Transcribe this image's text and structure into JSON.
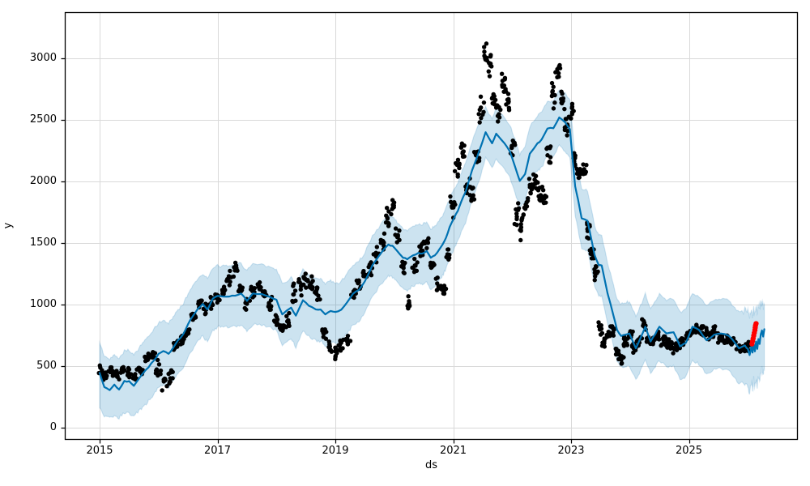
{
  "chart_data": {
    "type": "line",
    "subtype": "time-series-forecast (actuals scatter + forecast line + uncertainty band + anomaly points)",
    "title": "",
    "xlabel": "ds",
    "ylabel": "y",
    "legend": null,
    "grid": true,
    "x_ticks": [
      2015,
      2017,
      2019,
      2021,
      2023,
      2025
    ],
    "y_ticks": [
      0,
      500,
      1000,
      1500,
      2000,
      2500,
      3000
    ],
    "x_range": [
      2014.41,
      2026.85
    ],
    "y_range": [
      -99,
      3375
    ],
    "colors": {
      "forecast_line": "#0072B2",
      "uncertainty_band": "rgba(0,114,178,0.2)",
      "band_edge": "rgba(0,114,178,0.16)",
      "actual_points": "#000000",
      "anomaly_points": "#FF0000",
      "gridline": "#d9d9d9",
      "spine": "#000000",
      "background": "#ffffff"
    },
    "forecast": [
      [
        2015.0,
        445,
        160,
        690
      ],
      [
        2015.08,
        330,
        90,
        580
      ],
      [
        2015.17,
        305,
        75,
        555
      ],
      [
        2015.25,
        350,
        100,
        600
      ],
      [
        2015.33,
        310,
        80,
        560
      ],
      [
        2015.42,
        380,
        120,
        630
      ],
      [
        2015.5,
        378,
        115,
        628
      ],
      [
        2015.58,
        340,
        90,
        590
      ],
      [
        2015.67,
        400,
        140,
        650
      ],
      [
        2015.75,
        450,
        180,
        700
      ],
      [
        2015.83,
        490,
        215,
        740
      ],
      [
        2015.92,
        545,
        270,
        795
      ],
      [
        2016.0,
        600,
        330,
        850
      ],
      [
        2016.08,
        622,
        350,
        870
      ],
      [
        2016.17,
        600,
        330,
        850
      ],
      [
        2016.25,
        650,
        380,
        900
      ],
      [
        2016.33,
        710,
        440,
        958
      ],
      [
        2016.42,
        760,
        490,
        1008
      ],
      [
        2016.5,
        840,
        575,
        1088
      ],
      [
        2016.58,
        905,
        640,
        1152
      ],
      [
        2016.67,
        968,
        705,
        1215
      ],
      [
        2016.75,
        1005,
        740,
        1252
      ],
      [
        2016.83,
        960,
        698,
        1208
      ],
      [
        2016.92,
        1048,
        785,
        1295
      ],
      [
        2017.0,
        1070,
        822,
        1315
      ],
      [
        2017.1,
        1065,
        818,
        1310
      ],
      [
        2017.2,
        1065,
        818,
        1310
      ],
      [
        2017.3,
        1072,
        825,
        1318
      ],
      [
        2017.4,
        1090,
        842,
        1335
      ],
      [
        2017.5,
        1030,
        782,
        1275
      ],
      [
        2017.6,
        1090,
        842,
        1335
      ],
      [
        2017.75,
        1085,
        838,
        1330
      ],
      [
        2017.9,
        1060,
        812,
        1305
      ],
      [
        2018.0,
        1040,
        790,
        1288
      ],
      [
        2018.1,
        920,
        668,
        1168
      ],
      [
        2018.25,
        975,
        722,
        1222
      ],
      [
        2018.33,
        910,
        655,
        1158
      ],
      [
        2018.45,
        1035,
        782,
        1282
      ],
      [
        2018.55,
        990,
        738,
        1238
      ],
      [
        2018.67,
        960,
        705,
        1208
      ],
      [
        2018.75,
        960,
        705,
        1208
      ],
      [
        2018.83,
        920,
        665,
        1168
      ],
      [
        2018.92,
        948,
        692,
        1195
      ],
      [
        2019.0,
        940,
        688,
        1170
      ],
      [
        2019.1,
        958,
        705,
        1190
      ],
      [
        2019.2,
        1018,
        765,
        1252
      ],
      [
        2019.3,
        1088,
        835,
        1322
      ],
      [
        2019.4,
        1118,
        865,
        1352
      ],
      [
        2019.5,
        1188,
        935,
        1422
      ],
      [
        2019.63,
        1320,
        1068,
        1555
      ],
      [
        2019.77,
        1415,
        1162,
        1650
      ],
      [
        2019.9,
        1488,
        1235,
        1722
      ],
      [
        2019.97,
        1478,
        1225,
        1712
      ],
      [
        2020.05,
        1435,
        1182,
        1670
      ],
      [
        2020.15,
        1380,
        1128,
        1615
      ],
      [
        2020.22,
        1368,
        1115,
        1602
      ],
      [
        2020.32,
        1400,
        1148,
        1635
      ],
      [
        2020.41,
        1420,
        1168,
        1655
      ],
      [
        2020.48,
        1415,
        1162,
        1650
      ],
      [
        2020.55,
        1435,
        1182,
        1670
      ],
      [
        2020.62,
        1380,
        1128,
        1615
      ],
      [
        2020.69,
        1400,
        1148,
        1635
      ],
      [
        2020.76,
        1445,
        1192,
        1680
      ],
      [
        2020.82,
        1488,
        1235,
        1722
      ],
      [
        2020.88,
        1545,
        1295,
        1778
      ],
      [
        2020.94,
        1630,
        1380,
        1862
      ],
      [
        2021.01,
        1698,
        1448,
        1930
      ],
      [
        2021.08,
        1762,
        1515,
        1995
      ],
      [
        2021.14,
        1840,
        1595,
        2072
      ],
      [
        2021.21,
        1915,
        1670,
        2148
      ],
      [
        2021.32,
        2090,
        1848,
        2322
      ],
      [
        2021.44,
        2245,
        2005,
        2478
      ],
      [
        2021.55,
        2400,
        2198,
        2602
      ],
      [
        2021.66,
        2310,
        2105,
        2515
      ],
      [
        2021.73,
        2388,
        2182,
        2595
      ],
      [
        2021.87,
        2310,
        2102,
        2518
      ],
      [
        2021.96,
        2245,
        2035,
        2455
      ],
      [
        2022.05,
        2120,
        1905,
        2335
      ],
      [
        2022.13,
        2005,
        1788,
        2222
      ],
      [
        2022.22,
        2060,
        1842,
        2278
      ],
      [
        2022.3,
        2225,
        2005,
        2445
      ],
      [
        2022.43,
        2310,
        2088,
        2532
      ],
      [
        2022.5,
        2340,
        2118,
        2562
      ],
      [
        2022.6,
        2430,
        2205,
        2655
      ],
      [
        2022.7,
        2432,
        2205,
        2658
      ],
      [
        2022.8,
        2520,
        2292,
        2748
      ],
      [
        2022.9,
        2480,
        2250,
        2710
      ],
      [
        2022.98,
        2425,
        2192,
        2658
      ],
      [
        2023.07,
        1960,
        1725,
        2195
      ],
      [
        2023.12,
        1850,
        1612,
        2088
      ],
      [
        2023.18,
        1700,
        1460,
        1940
      ],
      [
        2023.28,
        1680,
        1438,
        1922
      ],
      [
        2023.4,
        1402,
        1158,
        1645
      ],
      [
        2023.47,
        1320,
        1075,
        1565
      ],
      [
        2023.52,
        1318,
        1072,
        1564
      ],
      [
        2023.62,
        1090,
        842,
        1338
      ],
      [
        2023.72,
        910,
        660,
        1160
      ],
      [
        2023.78,
        795,
        542,
        1048
      ],
      [
        2023.85,
        745,
        490,
        1000
      ],
      [
        2023.92,
        755,
        498,
        1012
      ],
      [
        2023.99,
        765,
        508,
        1022
      ],
      [
        2024.1,
        645,
        385,
        905
      ],
      [
        2024.18,
        730,
        468,
        992
      ],
      [
        2024.26,
        820,
        558,
        1082
      ],
      [
        2024.35,
        700,
        435,
        965
      ],
      [
        2024.43,
        760,
        495,
        1025
      ],
      [
        2024.5,
        820,
        552,
        1088
      ],
      [
        2024.62,
        765,
        495,
        1035
      ],
      [
        2024.74,
        775,
        505,
        1045
      ],
      [
        2024.85,
        660,
        388,
        932
      ],
      [
        2024.95,
        690,
        415,
        965
      ],
      [
        2025.06,
        820,
        545,
        1095
      ],
      [
        2025.17,
        795,
        518,
        1072
      ],
      [
        2025.3,
        710,
        432,
        988
      ],
      [
        2025.43,
        755,
        475,
        1035
      ],
      [
        2025.54,
        765,
        482,
        1048
      ],
      [
        2025.68,
        745,
        460,
        1030
      ],
      [
        2025.78,
        690,
        402,
        978
      ],
      [
        2025.85,
        645,
        355,
        935
      ],
      [
        2025.95,
        668,
        375,
        960
      ],
      [
        2026.0,
        640,
        345,
        938
      ],
      [
        2026.03,
        590,
        300,
        890
      ],
      [
        2026.06,
        660,
        365,
        955
      ],
      [
        2026.08,
        610,
        315,
        905
      ],
      [
        2026.1,
        680,
        385,
        975
      ],
      [
        2026.12,
        620,
        322,
        918
      ],
      [
        2026.14,
        700,
        400,
        990
      ],
      [
        2026.16,
        640,
        340,
        935
      ],
      [
        2026.18,
        720,
        415,
        1005
      ],
      [
        2026.2,
        680,
        372,
        968
      ],
      [
        2026.22,
        760,
        445,
        1020
      ],
      [
        2026.24,
        790,
        465,
        1005
      ],
      [
        2026.26,
        740,
        428,
        985
      ],
      [
        2026.28,
        800,
        462,
        1000
      ]
    ],
    "actuals": [
      [
        2015.02,
        460,
        80
      ],
      [
        2015.1,
        420,
        60
      ],
      [
        2015.2,
        450,
        60
      ],
      [
        2015.3,
        430,
        50
      ],
      [
        2015.4,
        470,
        50
      ],
      [
        2015.5,
        440,
        60
      ],
      [
        2015.6,
        420,
        60
      ],
      [
        2015.7,
        470,
        50
      ],
      [
        2015.8,
        560,
        60
      ],
      [
        2015.9,
        590,
        50
      ],
      [
        2016.0,
        480,
        90
      ],
      [
        2016.1,
        380,
        90
      ],
      [
        2016.2,
        430,
        80
      ],
      [
        2016.3,
        650,
        60
      ],
      [
        2016.4,
        700,
        60
      ],
      [
        2016.5,
        760,
        80
      ],
      [
        2016.6,
        900,
        70
      ],
      [
        2016.7,
        1000,
        60
      ],
      [
        2016.8,
        950,
        70
      ],
      [
        2016.9,
        1010,
        60
      ],
      [
        2017.0,
        1050,
        60
      ],
      [
        2017.1,
        1100,
        70
      ],
      [
        2017.2,
        1210,
        90
      ],
      [
        2017.3,
        1300,
        90
      ],
      [
        2017.4,
        1120,
        70
      ],
      [
        2017.5,
        1010,
        60
      ],
      [
        2017.6,
        1100,
        60
      ],
      [
        2017.7,
        1150,
        60
      ],
      [
        2017.8,
        1090,
        60
      ],
      [
        2017.9,
        1000,
        70
      ],
      [
        2018.0,
        860,
        70
      ],
      [
        2018.1,
        800,
        70
      ],
      [
        2018.2,
        860,
        80
      ],
      [
        2018.3,
        1090,
        90
      ],
      [
        2018.4,
        1150,
        90
      ],
      [
        2018.5,
        1200,
        80
      ],
      [
        2018.6,
        1160,
        80
      ],
      [
        2018.7,
        1090,
        70
      ],
      [
        2018.8,
        760,
        70
      ],
      [
        2018.9,
        660,
        70
      ],
      [
        2019.0,
        600,
        70
      ],
      [
        2019.1,
        660,
        70
      ],
      [
        2019.2,
        720,
        80
      ],
      [
        2019.3,
        1090,
        80
      ],
      [
        2019.4,
        1190,
        80
      ],
      [
        2019.5,
        1250,
        80
      ],
      [
        2019.6,
        1310,
        80
      ],
      [
        2019.7,
        1400,
        80
      ],
      [
        2019.8,
        1500,
        90
      ],
      [
        2019.9,
        1710,
        100
      ],
      [
        2019.97,
        1800,
        80
      ],
      [
        2020.05,
        1560,
        80
      ],
      [
        2020.15,
        1300,
        80
      ],
      [
        2020.25,
        1010,
        80
      ],
      [
        2020.35,
        1300,
        80
      ],
      [
        2020.45,
        1450,
        70
      ],
      [
        2020.55,
        1500,
        70
      ],
      [
        2020.65,
        1310,
        80
      ],
      [
        2020.75,
        1150,
        80
      ],
      [
        2020.85,
        1110,
        70
      ],
      [
        2020.92,
        1400,
        100
      ],
      [
        2021.0,
        1800,
        100
      ],
      [
        2021.08,
        2100,
        100
      ],
      [
        2021.16,
        2240,
        80
      ],
      [
        2021.24,
        1950,
        80
      ],
      [
        2021.32,
        1910,
        80
      ],
      [
        2021.4,
        2200,
        100
      ],
      [
        2021.48,
        2600,
        150
      ],
      [
        2021.55,
        3040,
        150
      ],
      [
        2021.62,
        2950,
        120
      ],
      [
        2021.7,
        2660,
        120
      ],
      [
        2021.78,
        2550,
        100
      ],
      [
        2021.85,
        2790,
        100
      ],
      [
        2021.92,
        2650,
        100
      ],
      [
        2022.0,
        2260,
        120
      ],
      [
        2022.08,
        1700,
        150
      ],
      [
        2022.16,
        1610,
        120
      ],
      [
        2022.24,
        1800,
        100
      ],
      [
        2022.32,
        1950,
        100
      ],
      [
        2022.4,
        2000,
        80
      ],
      [
        2022.48,
        1900,
        80
      ],
      [
        2022.55,
        1860,
        80
      ],
      [
        2022.62,
        2200,
        100
      ],
      [
        2022.7,
        2700,
        150
      ],
      [
        2022.78,
        2890,
        100
      ],
      [
        2022.85,
        2660,
        100
      ],
      [
        2022.92,
        2450,
        80
      ],
      [
        2023.0,
        2560,
        100
      ],
      [
        2023.07,
        2210,
        100
      ],
      [
        2023.14,
        2060,
        80
      ],
      [
        2023.21,
        2100,
        80
      ],
      [
        2023.28,
        1610,
        100
      ],
      [
        2023.35,
        1400,
        80
      ],
      [
        2023.42,
        1260,
        80
      ],
      [
        2023.5,
        810,
        80
      ],
      [
        2023.57,
        700,
        60
      ],
      [
        2023.64,
        760,
        60
      ],
      [
        2023.71,
        800,
        60
      ],
      [
        2023.78,
        610,
        60
      ],
      [
        2023.85,
        560,
        50
      ],
      [
        2023.92,
        700,
        60
      ],
      [
        2024.0,
        760,
        60
      ],
      [
        2024.08,
        650,
        50
      ],
      [
        2024.16,
        700,
        60
      ],
      [
        2024.24,
        850,
        60
      ],
      [
        2024.32,
        700,
        50
      ],
      [
        2024.4,
        710,
        50
      ],
      [
        2024.48,
        750,
        50
      ],
      [
        2024.56,
        700,
        50
      ],
      [
        2024.64,
        680,
        50
      ],
      [
        2024.72,
        650,
        50
      ],
      [
        2024.8,
        660,
        50
      ],
      [
        2024.88,
        700,
        50
      ],
      [
        2024.96,
        760,
        50
      ],
      [
        2025.04,
        780,
        50
      ],
      [
        2025.12,
        800,
        50
      ],
      [
        2025.2,
        790,
        50
      ],
      [
        2025.28,
        760,
        50
      ],
      [
        2025.36,
        740,
        50
      ],
      [
        2025.44,
        780,
        50
      ],
      [
        2025.52,
        720,
        50
      ],
      [
        2025.6,
        700,
        50
      ],
      [
        2025.68,
        720,
        50
      ],
      [
        2025.76,
        700,
        40
      ],
      [
        2025.84,
        650,
        40
      ],
      [
        2025.92,
        640,
        40
      ],
      [
        2026.0,
        660,
        40
      ]
    ],
    "anomalies": [
      [
        2026.07,
        680
      ],
      [
        2026.08,
        702
      ],
      [
        2026.09,
        724
      ],
      [
        2026.1,
        748
      ],
      [
        2026.11,
        770
      ],
      [
        2026.12,
        792
      ],
      [
        2026.125,
        812
      ],
      [
        2026.13,
        830
      ],
      [
        2026.14,
        845
      ]
    ]
  }
}
